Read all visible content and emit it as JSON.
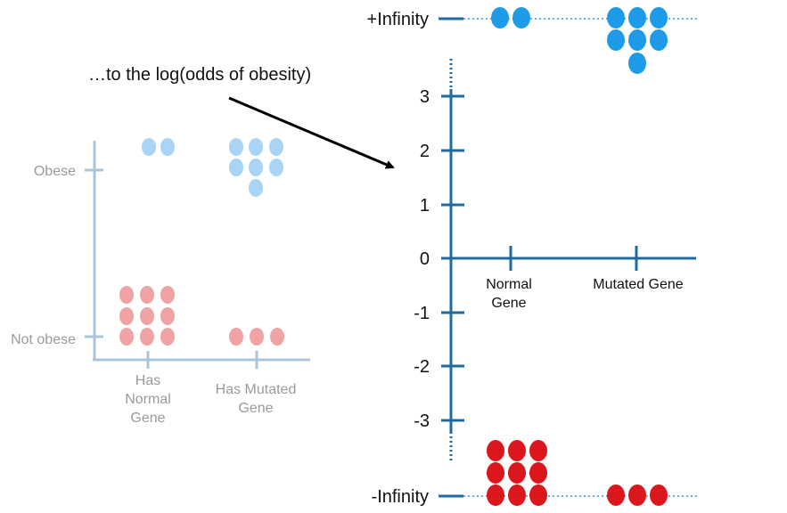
{
  "annotation": "…to the log(odds of obesity)",
  "left_plot": {
    "y_labels": [
      "Obese",
      "Not obese"
    ],
    "x_labels": [
      [
        "Has",
        "Normal",
        "Gene"
      ],
      [
        "Has Mutated",
        "Gene"
      ]
    ],
    "groups": [
      {
        "category": "Has Normal Gene",
        "obese": 2,
        "not_obese": 9
      },
      {
        "category": "Has Mutated Gene",
        "obese": 7,
        "not_obese": 3
      }
    ]
  },
  "right_plot": {
    "infinity_top": "+Infinity",
    "infinity_bottom": "-Infinity",
    "y_ticks": [
      "3",
      "2",
      "1",
      "0",
      "-1",
      "-2",
      "-3"
    ],
    "x_labels": [
      [
        "Normal",
        "Gene"
      ],
      [
        "Mutated Gene"
      ]
    ],
    "groups": [
      {
        "category": "Normal Gene",
        "plus_infinity": 2,
        "minus_infinity": 9
      },
      {
        "category": "Mutated Gene",
        "plus_infinity": 7,
        "minus_infinity": 3
      }
    ]
  },
  "colors": {
    "left_axis": "#a9c4dc",
    "left_text": "#9a9a9a",
    "left_obese_dot": "#a9d4f5",
    "left_not_obese_dot": "#f0a3a3",
    "right_axis": "#1f6aa0",
    "right_obese_dot": "#1e9be8",
    "right_not_obese_dot": "#d9171d",
    "arrow": "#000000"
  }
}
